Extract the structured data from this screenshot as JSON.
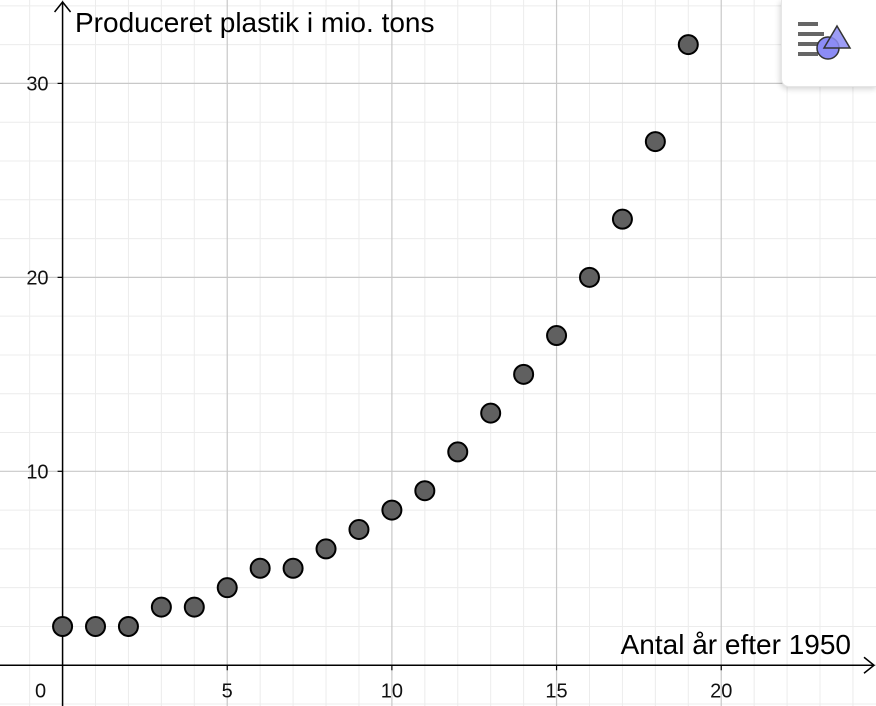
{
  "chart_data": {
    "type": "scatter",
    "ylabel": "Produceret plastik i mio. tons",
    "xlabel": "Antal år efter 1950",
    "x": [
      0,
      1,
      2,
      3,
      4,
      5,
      6,
      7,
      8,
      9,
      10,
      11,
      12,
      13,
      14,
      15,
      16,
      17,
      18,
      19
    ],
    "y": [
      2,
      2,
      2,
      3,
      3,
      4,
      5,
      5,
      6,
      7,
      8,
      9,
      11,
      13,
      15,
      17,
      20,
      23,
      27,
      32
    ],
    "xlim": [
      -1.9,
      24.7
    ],
    "ylim": [
      -2.1,
      34.3
    ],
    "x_ticks": [
      0,
      5,
      10,
      15,
      20
    ],
    "y_ticks": [
      10,
      20,
      30
    ],
    "x_tick_labels": [
      "0",
      "5",
      "10",
      "15",
      "20"
    ],
    "y_tick_labels": [
      "10",
      "20",
      "30"
    ],
    "grid": true,
    "point_color": "#606060",
    "point_stroke": "#000000"
  },
  "toolbar": {
    "style_bar_icon": "style-bar-icon",
    "accent_color": "#8c8cf5"
  }
}
